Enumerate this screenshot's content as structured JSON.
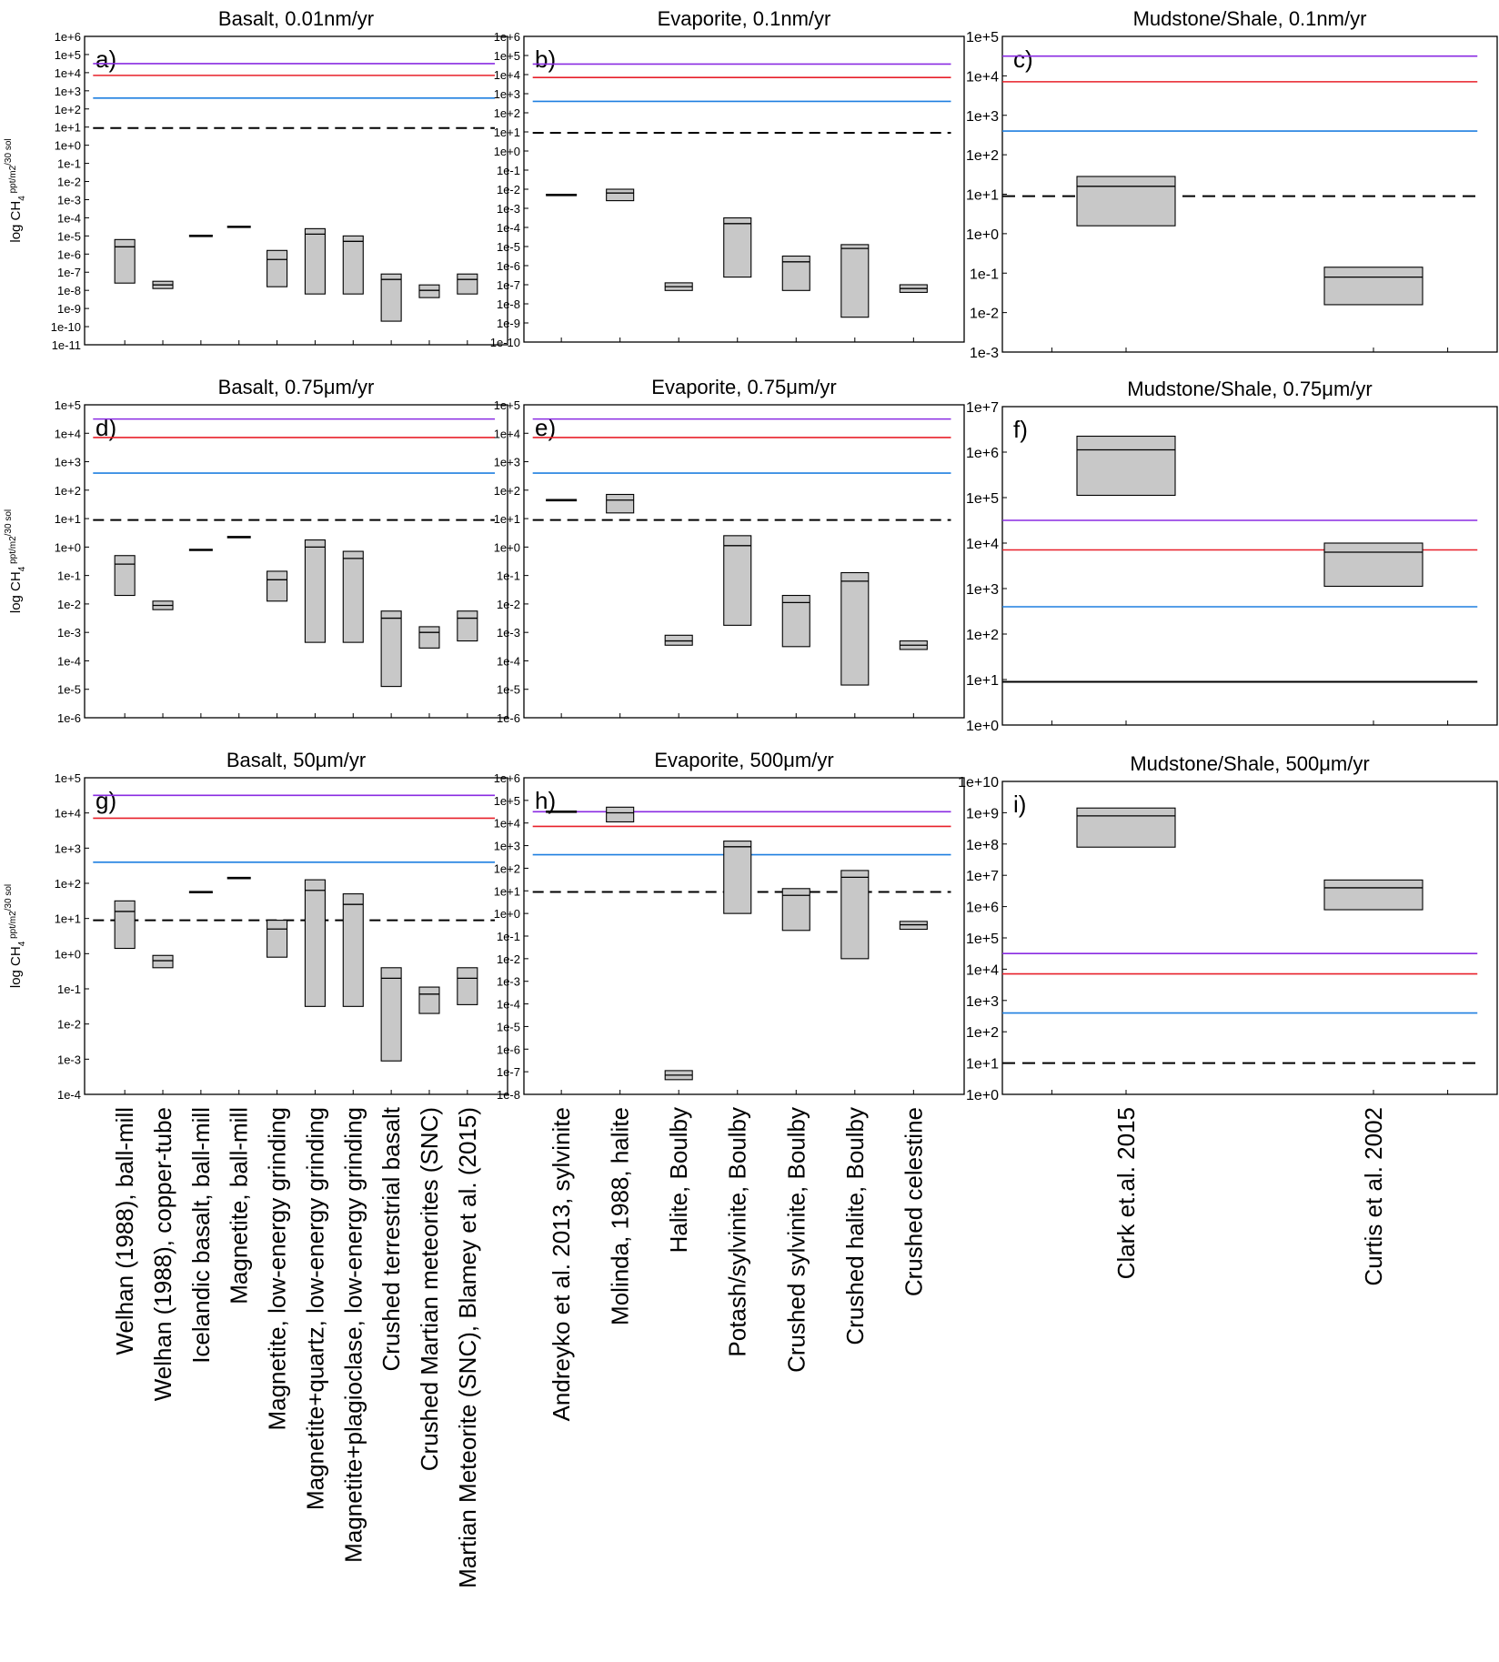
{
  "colors": {
    "purple": "#8a2be2",
    "red": "#e8202a",
    "blue": "#1e7fe0",
    "black": "#000000",
    "box_fill": "#c8c8c8"
  },
  "x_labels": {
    "basalt": [
      "Welhan (1988), ball-mill",
      "Welhan (1988), copper-tube",
      "Icelandic basalt, ball-mill",
      "Magnetite, ball-mill",
      "Magnetite, low-energy grinding",
      "Magnetite+quartz, low-energy grinding",
      "Magnetite+plagioclase, low-energy grinding",
      "Crushed terrestrial basalt",
      "Crushed Martian meteorites (SNC)",
      "Martian Meteorite (SNC), Blamey et al. (2015)"
    ],
    "evaporite": [
      "Andreyko et al. 2013, sylvinite",
      "Molinda, 1988, halite",
      "Halite, Boulby",
      "Potash/sylvinite, Boulby",
      "Crushed sylvinite, Boulby",
      "Crushed halite, Boulby",
      "Crushed celestine"
    ],
    "mudstone": [
      "Clark et.al. 2015",
      "Curtis et al. 2002"
    ]
  },
  "chart_data": [
    {
      "id": "a",
      "type": "box",
      "panel_label": "a)",
      "title": "Basalt, 0.01nm/yr",
      "ylabel": "log CH4 ppt/m2/30 sol",
      "ylim_exp": [
        -11,
        6
      ],
      "tick_labels": [
        "1e-11",
        "1e-10",
        "1e-9",
        "1e-8",
        "1e-7",
        "1e-6",
        "1e-5",
        "1e-4",
        "1e-3",
        "1e-2",
        "1e-1",
        "1e+0",
        "1e+1",
        "1e+2",
        "1e+3",
        "1e+4",
        "1e+5",
        "1e+6"
      ],
      "categories_ref": "basalt",
      "n_slots": 10,
      "reference_lines": [
        {
          "color": "purple",
          "value_exp": 4.5
        },
        {
          "color": "red",
          "value_exp": 3.85
        },
        {
          "color": "blue",
          "value_exp": 2.6
        },
        {
          "color": "black",
          "dashed": true,
          "value_exp": 0.95
        }
      ],
      "boxes": [
        {
          "x": 0,
          "low_exp": -7.6,
          "high_exp": -5.2,
          "median_exp": -5.6
        },
        {
          "x": 1,
          "low_exp": -7.9,
          "high_exp": -7.5,
          "median_exp": -7.7
        },
        {
          "x": 2,
          "low_exp": -5.0,
          "high_exp": -5.0,
          "median_exp": -5.0,
          "line": true
        },
        {
          "x": 3,
          "low_exp": -4.5,
          "high_exp": -4.5,
          "median_exp": -4.5,
          "line": true
        },
        {
          "x": 4,
          "low_exp": -7.8,
          "high_exp": -5.8,
          "median_exp": -6.3
        },
        {
          "x": 5,
          "low_exp": -8.2,
          "high_exp": -4.6,
          "median_exp": -4.9
        },
        {
          "x": 6,
          "low_exp": -8.2,
          "high_exp": -5.0,
          "median_exp": -5.3
        },
        {
          "x": 7,
          "low_exp": -9.7,
          "high_exp": -7.1,
          "median_exp": -7.4
        },
        {
          "x": 8,
          "low_exp": -8.4,
          "high_exp": -7.7,
          "median_exp": -8.0
        },
        {
          "x": 9,
          "low_exp": -8.2,
          "high_exp": -7.1,
          "median_exp": -7.4
        }
      ]
    },
    {
      "id": "b",
      "type": "box",
      "panel_label": "b)",
      "title": "Evaporite, 0.1nm/yr",
      "ylabel": "",
      "ylim_exp": [
        -10,
        6
      ],
      "tick_labels": [
        "1e-10",
        "1e-9",
        "1e-8",
        "1e-7",
        "1e-6",
        "1e-5",
        "1e-4",
        "1e-3",
        "1e-2",
        "1e-1",
        "1e+0",
        "1e+1",
        "1e+2",
        "1e+3",
        "1e+4",
        "1e+5",
        "1e+6"
      ],
      "categories_ref": "evaporite",
      "n_slots": 7,
      "reference_lines": [
        {
          "color": "purple",
          "value_exp": 4.55
        },
        {
          "color": "red",
          "value_exp": 3.85
        },
        {
          "color": "blue",
          "value_exp": 2.6
        },
        {
          "color": "black",
          "dashed": true,
          "value_exp": 0.95
        }
      ],
      "boxes": [
        {
          "x": 0,
          "low_exp": -2.3,
          "high_exp": -2.3,
          "median_exp": -2.3,
          "line": true
        },
        {
          "x": 1,
          "low_exp": -2.6,
          "high_exp": -2.0,
          "median_exp": -2.2
        },
        {
          "x": 2,
          "low_exp": -7.3,
          "high_exp": -6.9,
          "median_exp": -7.1
        },
        {
          "x": 3,
          "low_exp": -6.6,
          "high_exp": -3.5,
          "median_exp": -3.8
        },
        {
          "x": 4,
          "low_exp": -7.3,
          "high_exp": -5.5,
          "median_exp": -5.8
        },
        {
          "x": 5,
          "low_exp": -8.7,
          "high_exp": -4.9,
          "median_exp": -5.1
        },
        {
          "x": 6,
          "low_exp": -7.4,
          "high_exp": -7.0,
          "median_exp": -7.2
        }
      ]
    },
    {
      "id": "c",
      "type": "box",
      "panel_label": "c)",
      "title": "Mudstone/Shale, 0.1nm/yr",
      "ylabel": "",
      "ylim_exp": [
        -3,
        5
      ],
      "tick_labels": [
        "1e-3",
        "1e-2",
        "1e-1",
        "1e+0",
        "1e+1",
        "1e+2",
        "1e+3",
        "1e+4",
        "1e+5"
      ],
      "categories_ref": "mudstone",
      "n_slots": 2,
      "reference_lines": [
        {
          "color": "purple",
          "value_exp": 4.5
        },
        {
          "color": "red",
          "value_exp": 3.85
        },
        {
          "color": "blue",
          "value_exp": 2.6
        },
        {
          "color": "black",
          "dashed": true,
          "value_exp": 0.95
        }
      ],
      "boxes": [
        {
          "x": 0,
          "low_exp": 0.2,
          "high_exp": 1.45,
          "median_exp": 1.2
        },
        {
          "x": 1,
          "low_exp": -1.8,
          "high_exp": -0.85,
          "median_exp": -1.1
        }
      ]
    },
    {
      "id": "d",
      "type": "box",
      "panel_label": "d)",
      "title": "Basalt, 0.75μm/yr",
      "ylabel": "log CH4 ppt/m2/30 sol",
      "ylim_exp": [
        -6,
        5
      ],
      "tick_labels": [
        "1e-6",
        "1e-5",
        "1e-4",
        "1e-3",
        "1e-2",
        "1e-1",
        "1e+0",
        "1e+1",
        "1e+2",
        "1e+3",
        "1e+4",
        "1e+5"
      ],
      "categories_ref": "basalt",
      "n_slots": 10,
      "reference_lines": [
        {
          "color": "purple",
          "value_exp": 4.5
        },
        {
          "color": "red",
          "value_exp": 3.85
        },
        {
          "color": "blue",
          "value_exp": 2.6
        },
        {
          "color": "black",
          "dashed": true,
          "value_exp": 0.95
        }
      ],
      "boxes": [
        {
          "x": 0,
          "low_exp": -1.7,
          "high_exp": -0.3,
          "median_exp": -0.6
        },
        {
          "x": 1,
          "low_exp": -2.2,
          "high_exp": -1.9,
          "median_exp": -2.05
        },
        {
          "x": 2,
          "low_exp": -0.1,
          "high_exp": -0.1,
          "median_exp": -0.1,
          "line": true
        },
        {
          "x": 3,
          "low_exp": 0.35,
          "high_exp": 0.35,
          "median_exp": 0.35,
          "line": true
        },
        {
          "x": 4,
          "low_exp": -1.9,
          "high_exp": -0.85,
          "median_exp": -1.15
        },
        {
          "x": 5,
          "low_exp": -3.35,
          "high_exp": 0.25,
          "median_exp": 0
        },
        {
          "x": 6,
          "low_exp": -3.35,
          "high_exp": -0.15,
          "median_exp": -0.4
        },
        {
          "x": 7,
          "low_exp": -4.9,
          "high_exp": -2.25,
          "median_exp": -2.5
        },
        {
          "x": 8,
          "low_exp": -3.55,
          "high_exp": -2.8,
          "median_exp": -3.0
        },
        {
          "x": 9,
          "low_exp": -3.3,
          "high_exp": -2.25,
          "median_exp": -2.5
        }
      ]
    },
    {
      "id": "e",
      "type": "box",
      "panel_label": "e)",
      "title": "Evaporite, 0.75μm/yr",
      "ylabel": "",
      "ylim_exp": [
        -6,
        5
      ],
      "tick_labels": [
        "1e-6",
        "1e-5",
        "1e-4",
        "1e-3",
        "1e-2",
        "1e-1",
        "1e+0",
        "1e+1",
        "1e+2",
        "1e+3",
        "1e+4",
        "1e+5"
      ],
      "categories_ref": "evaporite",
      "n_slots": 7,
      "reference_lines": [
        {
          "color": "purple",
          "value_exp": 4.5
        },
        {
          "color": "red",
          "value_exp": 3.85
        },
        {
          "color": "blue",
          "value_exp": 2.6
        },
        {
          "color": "black",
          "dashed": true,
          "value_exp": 0.95
        }
      ],
      "boxes": [
        {
          "x": 0,
          "low_exp": 1.65,
          "high_exp": 1.65,
          "median_exp": 1.65,
          "line": true
        },
        {
          "x": 1,
          "low_exp": 1.2,
          "high_exp": 1.85,
          "median_exp": 1.65
        },
        {
          "x": 2,
          "low_exp": -3.45,
          "high_exp": -3.1,
          "median_exp": -3.3
        },
        {
          "x": 3,
          "low_exp": -2.75,
          "high_exp": 0.4,
          "median_exp": 0.05
        },
        {
          "x": 4,
          "low_exp": -3.5,
          "high_exp": -1.7,
          "median_exp": -1.95
        },
        {
          "x": 5,
          "low_exp": -4.85,
          "high_exp": -0.9,
          "median_exp": -1.2
        },
        {
          "x": 6,
          "low_exp": -3.6,
          "high_exp": -3.3,
          "median_exp": -3.45
        }
      ]
    },
    {
      "id": "f",
      "type": "box",
      "panel_label": "f)",
      "title": "Mudstone/Shale, 0.75μm/yr",
      "ylabel": "",
      "ylim_exp": [
        0,
        7
      ],
      "tick_labels": [
        "1e+0",
        "1e+1",
        "1e+2",
        "1e+3",
        "1e+4",
        "1e+5",
        "1e+6",
        "1e+7"
      ],
      "categories_ref": "mudstone",
      "n_slots": 2,
      "reference_lines": [
        {
          "color": "purple",
          "value_exp": 4.5
        },
        {
          "color": "red",
          "value_exp": 3.85
        },
        {
          "color": "blue",
          "value_exp": 2.6
        },
        {
          "color": "black",
          "value_exp": 0.95
        }
      ],
      "boxes": [
        {
          "x": 0,
          "low_exp": 5.05,
          "high_exp": 6.35,
          "median_exp": 6.05
        },
        {
          "x": 1,
          "low_exp": 3.05,
          "high_exp": 4.0,
          "median_exp": 3.8
        }
      ]
    },
    {
      "id": "g",
      "type": "box",
      "panel_label": "g)",
      "title": "Basalt, 50μm/yr",
      "ylabel": "log CH4 ppt/m2/30 sol",
      "ylim_exp": [
        -4,
        5
      ],
      "tick_labels": [
        "1e-4",
        "1e-3",
        "1e-2",
        "1e-1",
        "1e+0",
        "1e+1",
        "1e+2",
        "1e+3",
        "1e+4",
        "1e+5"
      ],
      "categories_ref": "basalt",
      "n_slots": 10,
      "reference_lines": [
        {
          "color": "purple",
          "value_exp": 4.5
        },
        {
          "color": "red",
          "value_exp": 3.85
        },
        {
          "color": "blue",
          "value_exp": 2.6
        },
        {
          "color": "black",
          "dashed": true,
          "value_exp": 0.95
        }
      ],
      "boxes": [
        {
          "x": 0,
          "low_exp": 0.15,
          "high_exp": 1.5,
          "median_exp": 1.2
        },
        {
          "x": 1,
          "low_exp": -0.4,
          "high_exp": -0.05,
          "median_exp": -0.2
        },
        {
          "x": 2,
          "low_exp": 1.75,
          "high_exp": 1.75,
          "median_exp": 1.75,
          "line": true
        },
        {
          "x": 3,
          "low_exp": 2.15,
          "high_exp": 2.15,
          "median_exp": 2.15,
          "line": true
        },
        {
          "x": 4,
          "low_exp": -0.1,
          "high_exp": 0.95,
          "median_exp": 0.7
        },
        {
          "x": 5,
          "low_exp": -1.5,
          "high_exp": 2.1,
          "median_exp": 1.8
        },
        {
          "x": 6,
          "low_exp": -1.5,
          "high_exp": 1.7,
          "median_exp": 1.4
        },
        {
          "x": 7,
          "low_exp": -3.05,
          "high_exp": -0.4,
          "median_exp": -0.7
        },
        {
          "x": 8,
          "low_exp": -1.7,
          "high_exp": -0.95,
          "median_exp": -1.15
        },
        {
          "x": 9,
          "low_exp": -1.45,
          "high_exp": -0.4,
          "median_exp": -0.7
        }
      ]
    },
    {
      "id": "h",
      "type": "box",
      "panel_label": "h)",
      "title": "Evaporite, 500μm/yr",
      "ylabel": "",
      "ylim_exp": [
        -8,
        6
      ],
      "tick_labels": [
        "1e-8",
        "1e-7",
        "1e-6",
        "1e-5",
        "1e-4",
        "1e-3",
        "1e-2",
        "1e-1",
        "1e+0",
        "1e+1",
        "1e+2",
        "1e+3",
        "1e+4",
        "1e+5",
        "1e+6"
      ],
      "categories_ref": "evaporite",
      "n_slots": 7,
      "reference_lines": [
        {
          "color": "purple",
          "value_exp": 4.5
        },
        {
          "color": "red",
          "value_exp": 3.85
        },
        {
          "color": "blue",
          "value_exp": 2.6
        },
        {
          "color": "black",
          "dashed": true,
          "value_exp": 0.95
        }
      ],
      "boxes": [
        {
          "x": 0,
          "low_exp": 4.5,
          "high_exp": 4.5,
          "median_exp": 4.5,
          "line": true
        },
        {
          "x": 1,
          "low_exp": 4.05,
          "high_exp": 4.7,
          "median_exp": 4.45
        },
        {
          "x": 2,
          "low_exp": -7.35,
          "high_exp": -6.95,
          "median_exp": -7.15
        },
        {
          "x": 3,
          "low_exp": 0.0,
          "high_exp": 3.2,
          "median_exp": 2.95
        },
        {
          "x": 4,
          "low_exp": -0.75,
          "high_exp": 1.1,
          "median_exp": 0.8
        },
        {
          "x": 5,
          "low_exp": -2.0,
          "high_exp": 1.9,
          "median_exp": 1.6
        },
        {
          "x": 6,
          "low_exp": -0.7,
          "high_exp": -0.35,
          "median_exp": -0.5
        }
      ]
    },
    {
      "id": "i",
      "type": "box",
      "panel_label": "i)",
      "title": "Mudstone/Shale, 500μm/yr",
      "ylabel": "",
      "ylim_exp": [
        0,
        10
      ],
      "tick_labels": [
        "1e+0",
        "1e+1",
        "1e+2",
        "1e+3",
        "1e+4",
        "1e+5",
        "1e+6",
        "1e+7",
        "1e+8",
        "1e+9",
        "1e+10"
      ],
      "categories_ref": "mudstone",
      "n_slots": 2,
      "reference_lines": [
        {
          "color": "purple",
          "value_exp": 4.5
        },
        {
          "color": "red",
          "value_exp": 3.85
        },
        {
          "color": "blue",
          "value_exp": 2.6
        },
        {
          "color": "black",
          "dashed": true,
          "value_exp": 1.0
        }
      ],
      "boxes": [
        {
          "x": 0,
          "low_exp": 7.9,
          "high_exp": 9.15,
          "median_exp": 8.9
        },
        {
          "x": 1,
          "low_exp": 5.9,
          "high_exp": 6.85,
          "median_exp": 6.6
        }
      ]
    }
  ]
}
